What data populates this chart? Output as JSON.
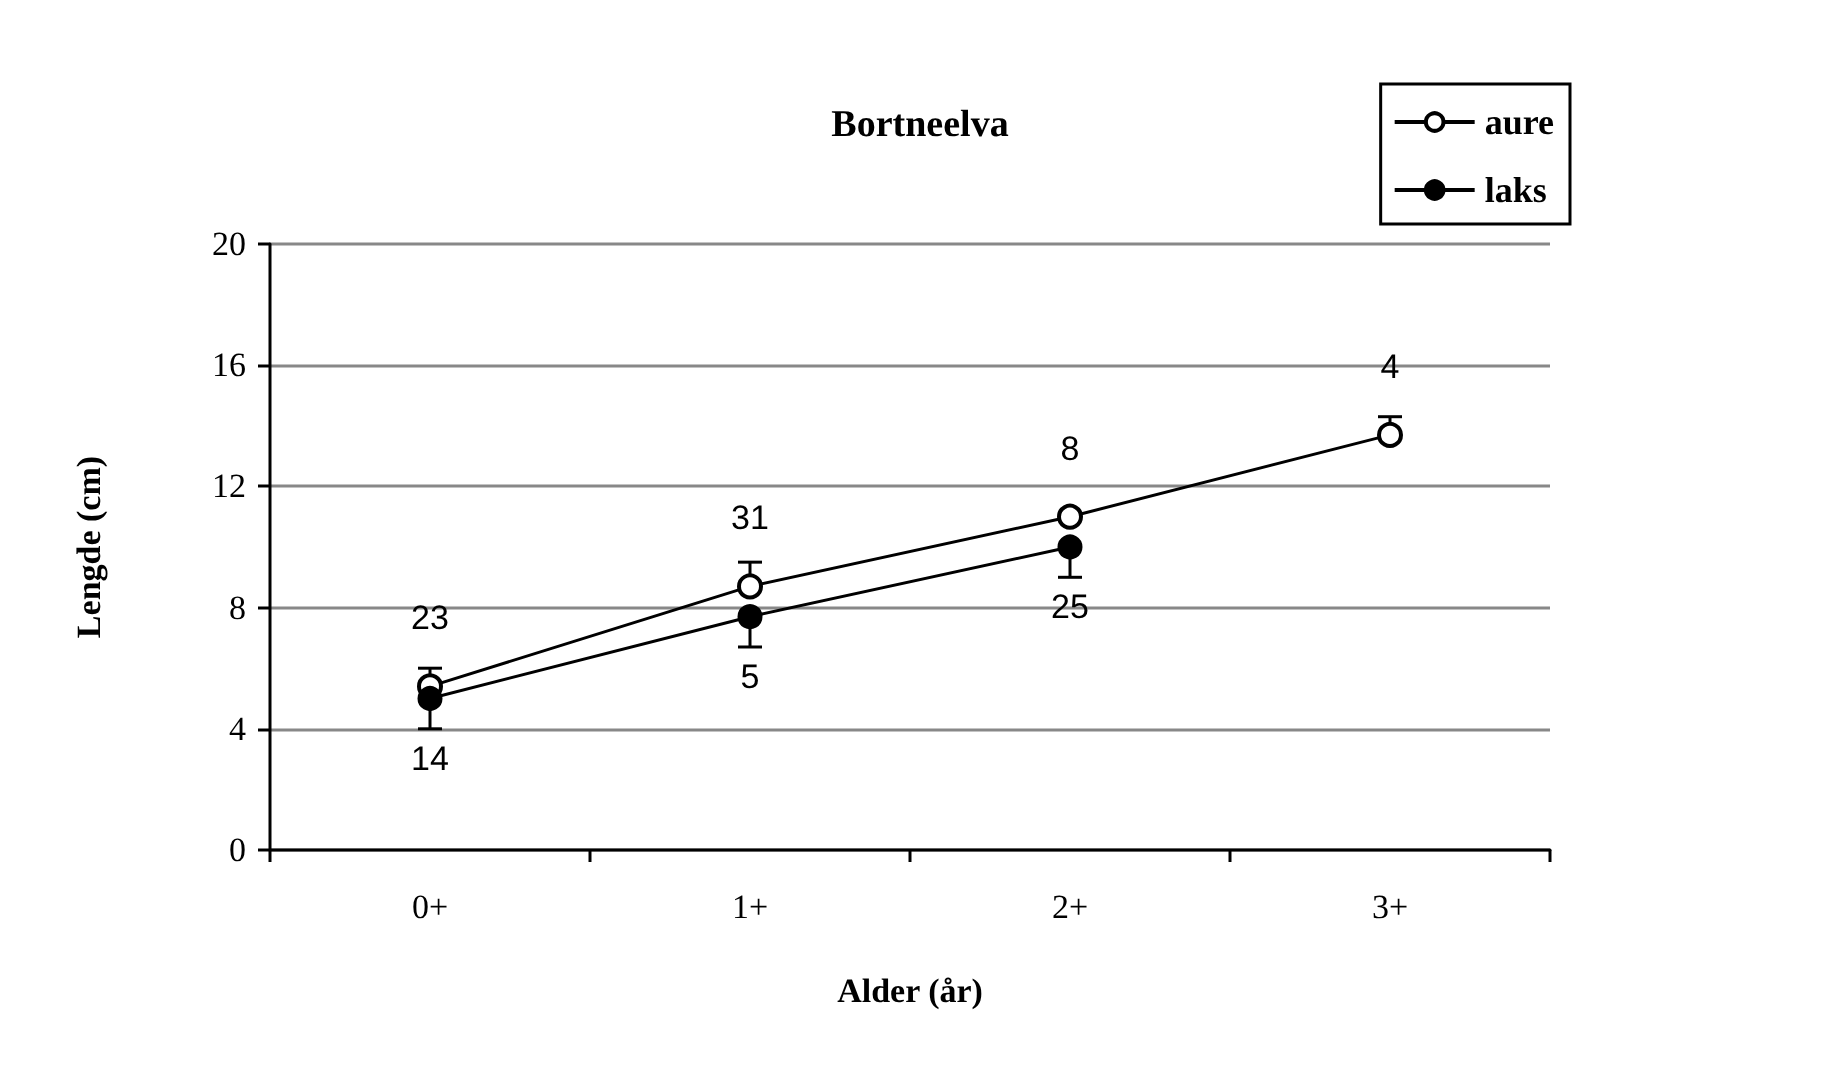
{
  "chart_data": {
    "type": "line",
    "title": "Bortneelva",
    "xlabel": "Alder (år)",
    "ylabel": "Lengde (cm)",
    "categories": [
      "0+",
      "1+",
      "2+",
      "3+"
    ],
    "series": [
      {
        "name": "aure",
        "color": "#000000",
        "marker": "open circle",
        "values": [
          5.4,
          8.7,
          11.0,
          13.7
        ],
        "errors": [
          [
            5.4,
            6.0
          ],
          [
            8.7,
            9.5
          ],
          null,
          [
            13.7,
            14.3
          ]
        ]
      },
      {
        "name": "laks",
        "color": "#000000",
        "marker": "circle",
        "values": [
          5.0,
          7.7,
          10.0,
          null
        ],
        "errors": [
          [
            4.0,
            5.0
          ],
          [
            6.7,
            7.7
          ],
          [
            9.0,
            10.0
          ],
          null
        ]
      }
    ],
    "annotations": [
      {
        "text": "23",
        "x": "0+",
        "y": 5.4
      },
      {
        "text": "31",
        "x": "1+",
        "y": 8.7
      },
      {
        "text": "8",
        "x": "2+",
        "y": 11.0
      },
      {
        "text": "4",
        "x": "3+",
        "y": 13.7
      },
      {
        "text": "14",
        "x": "0+",
        "y": 5.0
      },
      {
        "text": "5",
        "x": "1+",
        "y": 7.7
      },
      {
        "text": "25",
        "x": "2+",
        "y": 10.0
      }
    ],
    "ylim": [
      0,
      20
    ],
    "yticks": [
      0,
      4,
      8,
      12,
      16,
      20
    ],
    "grid": "y",
    "legend": "top right",
    "line_style": "solid"
  }
}
